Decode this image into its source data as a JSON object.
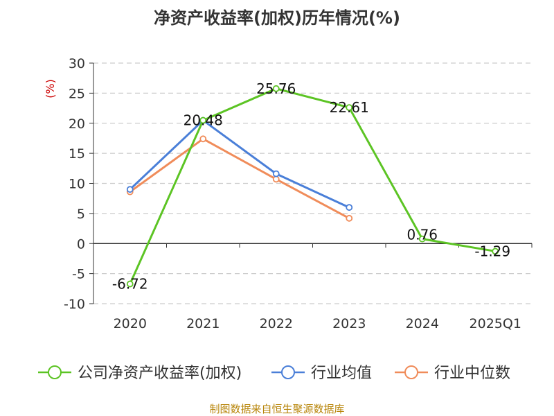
{
  "chart_data": {
    "type": "line",
    "title": "净资产收益率(加权)历年情况(%)",
    "ylabel": "(%)",
    "xlabel": "",
    "categories": [
      "2020",
      "2021",
      "2022",
      "2023",
      "2024",
      "2025Q1"
    ],
    "ylim": [
      -10,
      30
    ],
    "yticks": [
      30,
      25,
      20,
      15,
      10,
      5,
      0,
      -5,
      -10
    ],
    "grid": true,
    "legend_position": "bottom",
    "series": [
      {
        "name": "公司净资产收益率(加权)",
        "color": "#5cc424",
        "values": [
          -6.72,
          20.48,
          25.76,
          22.61,
          0.76,
          -1.29
        ],
        "labels": [
          "-6.72",
          "",
          "25.76",
          "22.61",
          "0.76",
          "-1.29"
        ]
      },
      {
        "name": "行业均值",
        "color": "#4a7fd8",
        "values": [
          9.0,
          20.48,
          11.6,
          6.0,
          null,
          null
        ],
        "labels": [
          "",
          "20.48",
          "",
          "",
          "",
          ""
        ]
      },
      {
        "name": "行业中位数",
        "color": "#f08c5a",
        "values": [
          8.6,
          17.4,
          10.7,
          4.2,
          null,
          null
        ],
        "labels": [
          "",
          "",
          "",
          "",
          "",
          ""
        ]
      }
    ]
  },
  "source_text": "制图数据来自恒生聚源数据库"
}
